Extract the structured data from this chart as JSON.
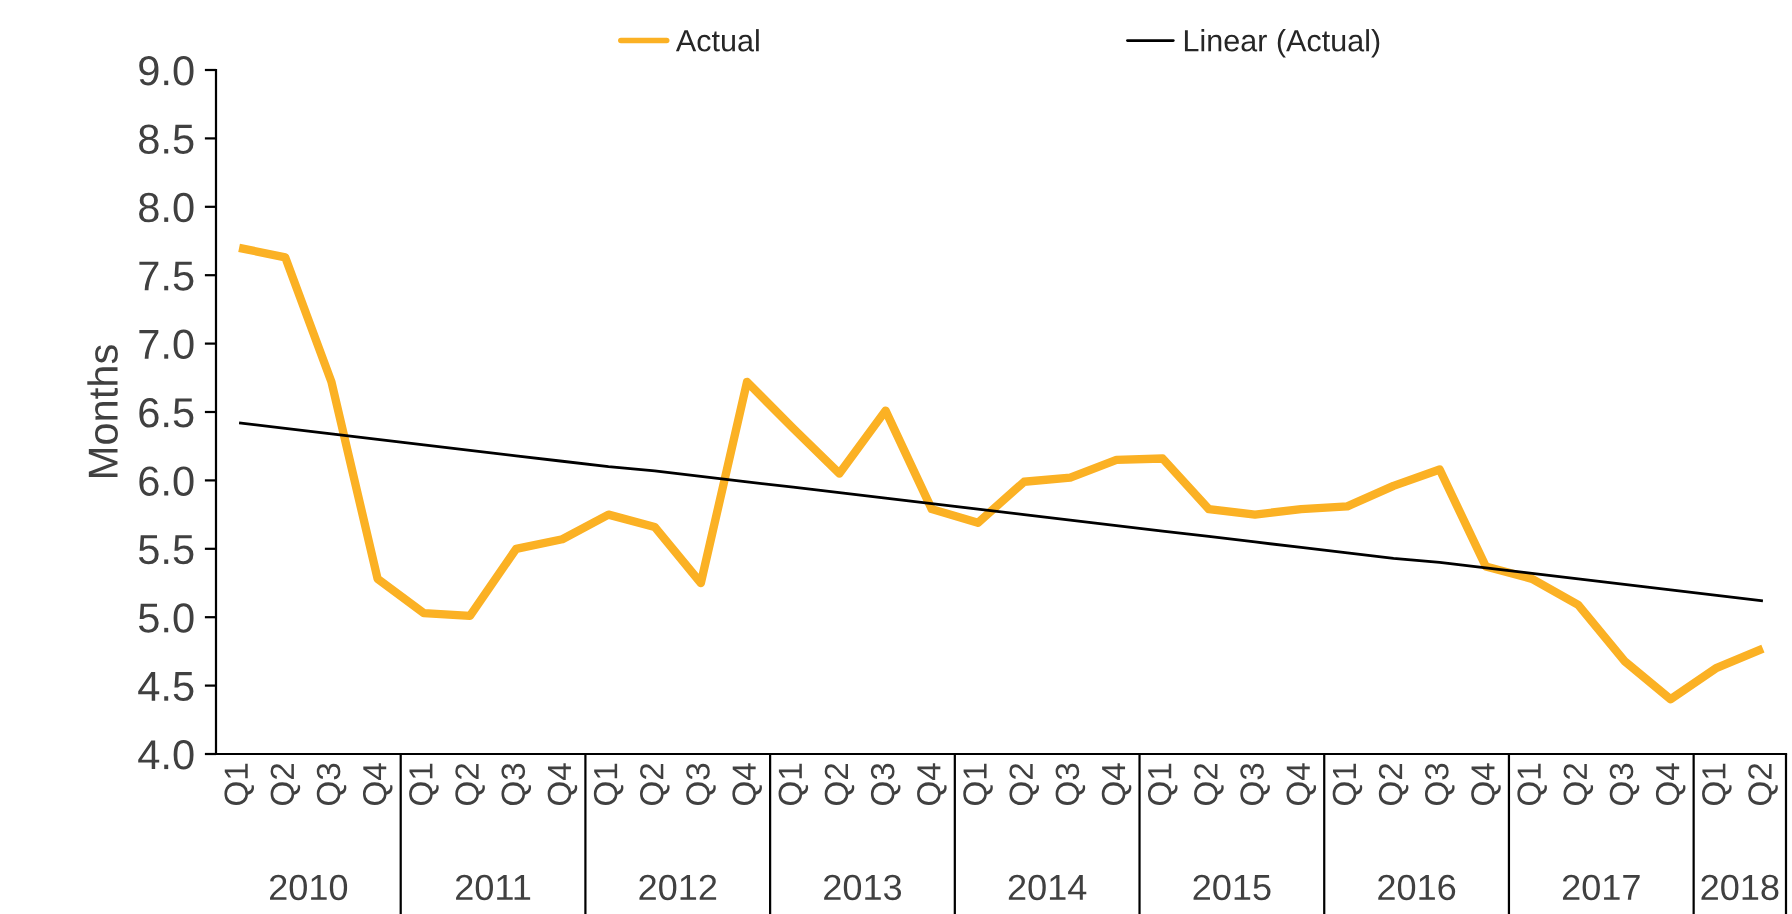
{
  "chart_data": {
    "type": "line",
    "ylabel": "Months",
    "categories": [
      "Q1",
      "Q2",
      "Q3",
      "Q4",
      "Q1",
      "Q2",
      "Q3",
      "Q4",
      "Q1",
      "Q2",
      "Q3",
      "Q4",
      "Q1",
      "Q2",
      "Q3",
      "Q4",
      "Q1",
      "Q2",
      "Q3",
      "Q4",
      "Q1",
      "Q2",
      "Q3",
      "Q4",
      "Q1",
      "Q2",
      "Q3",
      "Q4",
      "Q1",
      "Q2",
      "Q3",
      "Q4",
      "Q1",
      "Q2"
    ],
    "series": [
      {
        "name": "Actual",
        "color": "#fbb124",
        "values": [
          7.7,
          7.63,
          6.72,
          5.28,
          5.03,
          5.01,
          5.5,
          5.57,
          5.75,
          5.66,
          5.25,
          6.72,
          6.38,
          6.05,
          6.51,
          5.79,
          5.69,
          5.99,
          6.02,
          6.15,
          6.16,
          5.79,
          5.75,
          5.79,
          5.81,
          5.96,
          6.08,
          5.37,
          5.28,
          5.09,
          4.68,
          4.4,
          4.63,
          4.77
        ]
      },
      {
        "name": "Linear (Actual)",
        "color": "#000000",
        "values": [
          6.42,
          6.38,
          6.34,
          6.3,
          6.26,
          6.22,
          6.18,
          6.14,
          6.1,
          6.07,
          6.03,
          5.99,
          5.95,
          5.91,
          5.87,
          5.83,
          5.79,
          5.75,
          5.71,
          5.67,
          5.63,
          5.59,
          5.55,
          5.51,
          5.47,
          5.43,
          5.4,
          5.36,
          5.32,
          5.28,
          5.24,
          5.2,
          5.16,
          5.12
        ]
      }
    ],
    "annotations": [
      "2010",
      "2011",
      "2012",
      "2013",
      "2014",
      "2015",
      "2016",
      "2017",
      "2018"
    ],
    "ylim": [
      4.0,
      9.0
    ],
    "yticks": [
      {
        "value": 4.0,
        "label": "4.0"
      },
      {
        "value": 4.5,
        "label": "4.5"
      },
      {
        "value": 5.0,
        "label": "5.0"
      },
      {
        "value": 5.5,
        "label": "5.5"
      },
      {
        "value": 6.0,
        "label": "6.0"
      },
      {
        "value": 6.5,
        "label": "6.5"
      },
      {
        "value": 7.0,
        "label": "7.0"
      },
      {
        "value": 7.5,
        "label": "7.5"
      },
      {
        "value": 8.0,
        "label": "8.0"
      },
      {
        "value": 8.5,
        "label": "8.5"
      },
      {
        "value": 9.0,
        "label": "9.0"
      }
    ],
    "grid": false,
    "legend": "top",
    "marker": "none",
    "line_style": "solid"
  }
}
